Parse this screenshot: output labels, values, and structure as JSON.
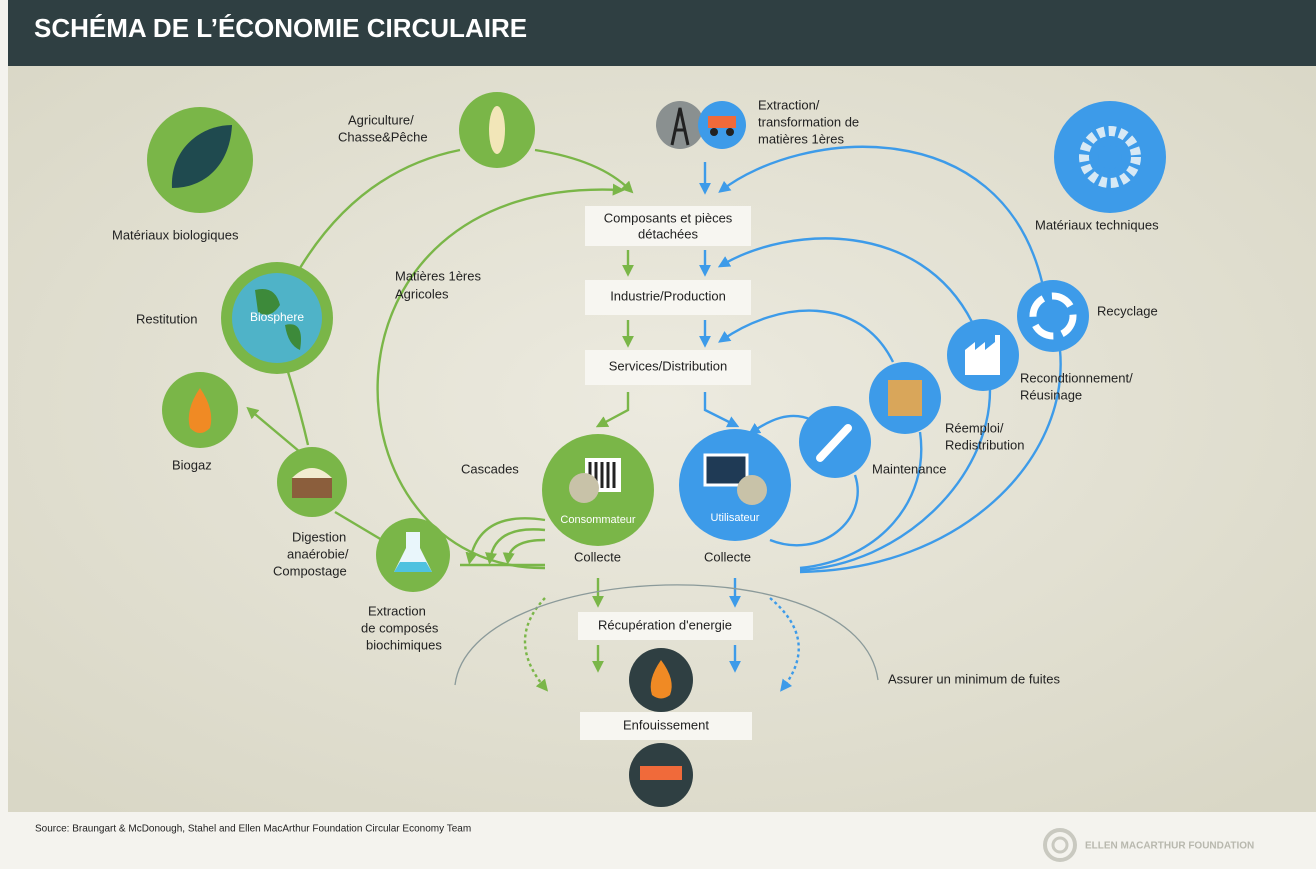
{
  "header": {
    "title": "SCHÉMA DE L’ÉCONOMIE CIRCULAIRE"
  },
  "biological": {
    "materials": "Matériaux biologiques",
    "agriculture": [
      "Agriculture/",
      "Chasse&Pêche"
    ],
    "raw_agri": [
      "Matières 1ères",
      "Agricoles"
    ],
    "restitution": "Restitution",
    "biosphere": "Biosphere",
    "biogaz": "Biogaz",
    "digestion": [
      "Digestion",
      "anaérobie/",
      "Compostage"
    ],
    "extraction_bio": [
      "Extraction",
      "de composés",
      "biochimiques"
    ],
    "cascades": "Cascades",
    "consumer": "Consommateur",
    "collect": "Collecte"
  },
  "technical": {
    "extraction": [
      "Extraction/",
      "transformation de",
      "matières 1ères"
    ],
    "materials": "Matériaux techniques",
    "recycling": "Recyclage",
    "remanufacturing": [
      "Recondtionnement/",
      "Réusinage"
    ],
    "reuse": [
      "Réemploi/",
      "Redistribution"
    ],
    "maintenance": "Maintenance",
    "user": "Utilisateur",
    "collect": "Collecte"
  },
  "flow": {
    "components": [
      "Composants et pièces",
      "détachées"
    ],
    "industry": "Industrie/Production",
    "services": "Services/Distribution",
    "energy": "Récupération d'energie",
    "landfill": "Enfouissement",
    "leakage": "Assurer un minimum de fuites"
  },
  "footer": {
    "source": "Source: Braungart & McDonough, Stahel and Ellen MacArthur Foundation Circular Economy Team",
    "logo": "ELLEN MACARTHUR FOUNDATION"
  }
}
